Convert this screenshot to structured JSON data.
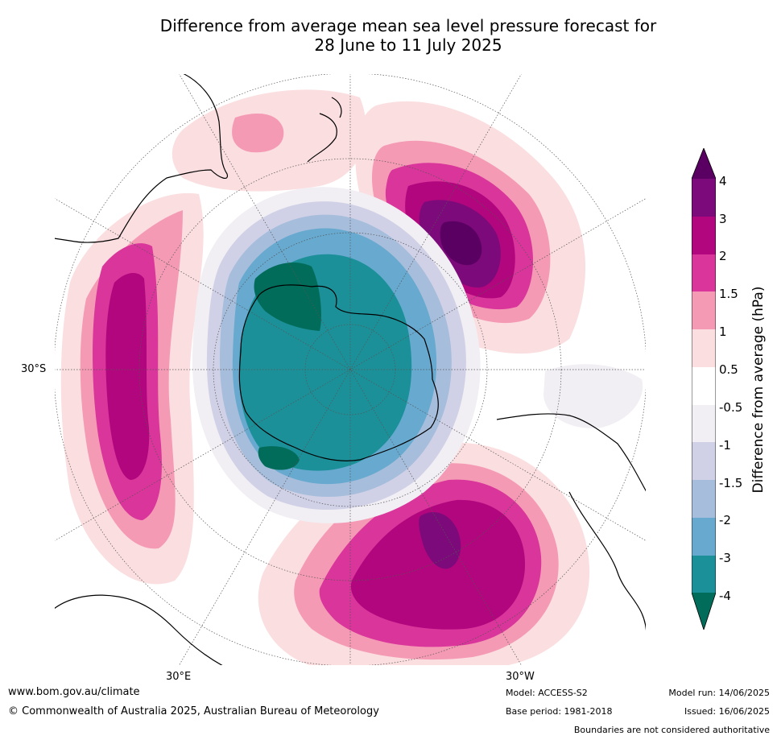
{
  "title_line1": "Difference from average mean sea level pressure forecast for",
  "title_line2": "28 June to 11 July 2025",
  "map": {
    "lat_label": "30°S",
    "lon_labels": [
      "30°E",
      "30°W"
    ]
  },
  "colorbar": {
    "title": "Difference from average (hPa)",
    "ticks": [
      "4",
      "3",
      "2",
      "1.5",
      "1",
      "0.5",
      "-0.5",
      "-1",
      "-1.5",
      "-2",
      "-3",
      "-4"
    ],
    "colors": [
      "#5b0063",
      "#7d0a7a",
      "#b1067d",
      "#d9359a",
      "#f59ab5",
      "#fbdedf",
      "#ffffff",
      "#f1eef4",
      "#d0d1e6",
      "#a6bddb",
      "#67a9cf",
      "#1c9099",
      "#016c59"
    ]
  },
  "footer": {
    "website": "www.bom.gov.au/climate",
    "copyright": "© Commonwealth of Australia 2025, Australian Bureau of Meteorology",
    "model": "Model: ACCESS-S2",
    "base_period": "Base period: 1981-2018",
    "model_run": "Model run: 14/06/2025",
    "issued": "Issued: 16/06/2025",
    "disclaimer": "Boundaries are not considered authoritative"
  }
}
